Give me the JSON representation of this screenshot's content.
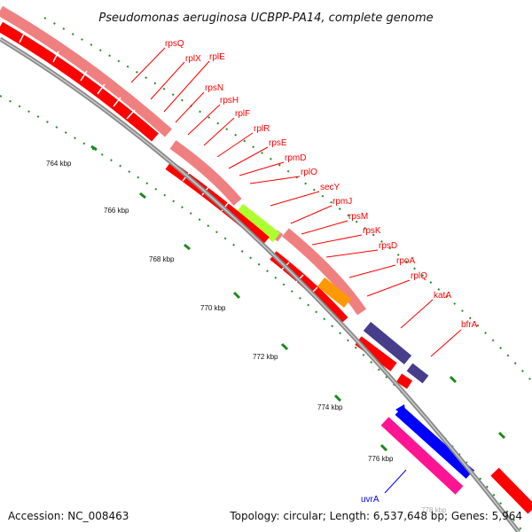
{
  "title": "Pseudomonas aeruginosa UCBPP-PA14, complete genome",
  "footer": {
    "accession": "Accession: NC_008463",
    "summary": "Topology: circular; Length: 6,537,648 bp; Genes: 5,964"
  },
  "colors": {
    "cds_forward": "#ff0000",
    "operon_band": "#f08080",
    "backbone": "#888888",
    "gc_dots": "#228b22",
    "green_feature": "#adff2f",
    "orange_feature": "#ff9900",
    "purple_feature": "#483d8b",
    "blue_feature": "#0000ff",
    "magenta_feature": "#ff1493",
    "label_red": "#ff0000",
    "label_blue": "#0000ff"
  },
  "kbp_ticks": [
    "764 kbp",
    "766 kbp",
    "768 kbp",
    "770 kbp",
    "772 kbp",
    "774 kbp",
    "776 kbp",
    "778 kbp"
  ],
  "gene_labels": [
    {
      "text": "rpsQ",
      "color": "red"
    },
    {
      "text": "rplX",
      "color": "red"
    },
    {
      "text": "rplE",
      "color": "red"
    },
    {
      "text": "rpsN",
      "color": "red"
    },
    {
      "text": "rpsH",
      "color": "red"
    },
    {
      "text": "rplF",
      "color": "red"
    },
    {
      "text": "rplR",
      "color": "red"
    },
    {
      "text": "rpsE",
      "color": "red"
    },
    {
      "text": "rpmD",
      "color": "red"
    },
    {
      "text": "rplO",
      "color": "red"
    },
    {
      "text": "secY",
      "color": "red"
    },
    {
      "text": "rpmJ",
      "color": "red"
    },
    {
      "text": "rpsM",
      "color": "red"
    },
    {
      "text": "rpsK",
      "color": "red"
    },
    {
      "text": "rpsD",
      "color": "red"
    },
    {
      "text": "rpoA",
      "color": "red"
    },
    {
      "text": "rplQ",
      "color": "red"
    },
    {
      "text": "katA",
      "color": "red"
    },
    {
      "text": "bfrA",
      "color": "red"
    },
    {
      "text": "uvrA",
      "color": "blue"
    }
  ]
}
